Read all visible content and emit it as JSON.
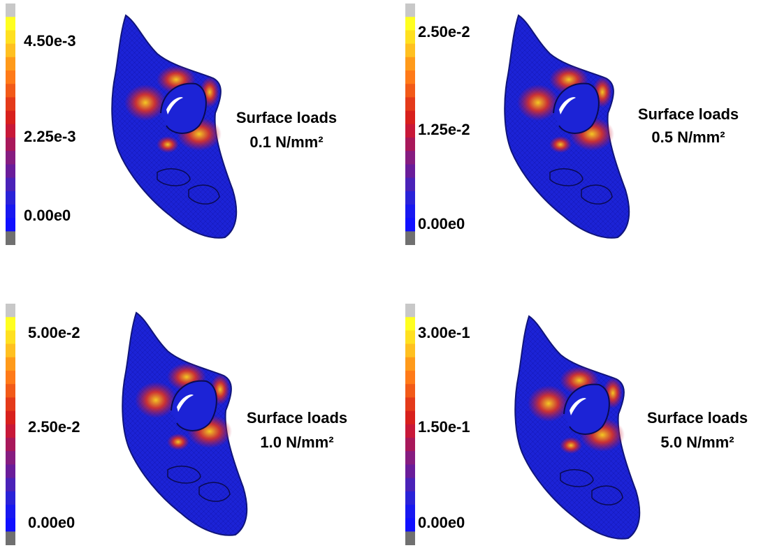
{
  "panels": [
    {
      "colorbar": {
        "max": "4.50e-3",
        "mid": "2.25e-3",
        "min": "0.00e0"
      },
      "caption": {
        "line1": "Surface loads",
        "line2": "0.1 N/mm²"
      }
    },
    {
      "colorbar": {
        "max": "2.50e-2",
        "mid": "1.25e-2",
        "min": "0.00e0"
      },
      "caption": {
        "line1": "Surface loads",
        "line2": "0.5 N/mm²"
      }
    },
    {
      "colorbar": {
        "max": "5.00e-2",
        "mid": "2.50e-2",
        "min": "0.00e0"
      },
      "caption": {
        "line1": "Surface loads",
        "line2": "1.0 N/mm²"
      }
    },
    {
      "colorbar": {
        "max": "3.00e-1",
        "mid": "1.50e-1",
        "min": "0.00e0"
      },
      "caption": {
        "line1": "Surface loads",
        "line2": "5.0 N/mm²"
      }
    }
  ]
}
